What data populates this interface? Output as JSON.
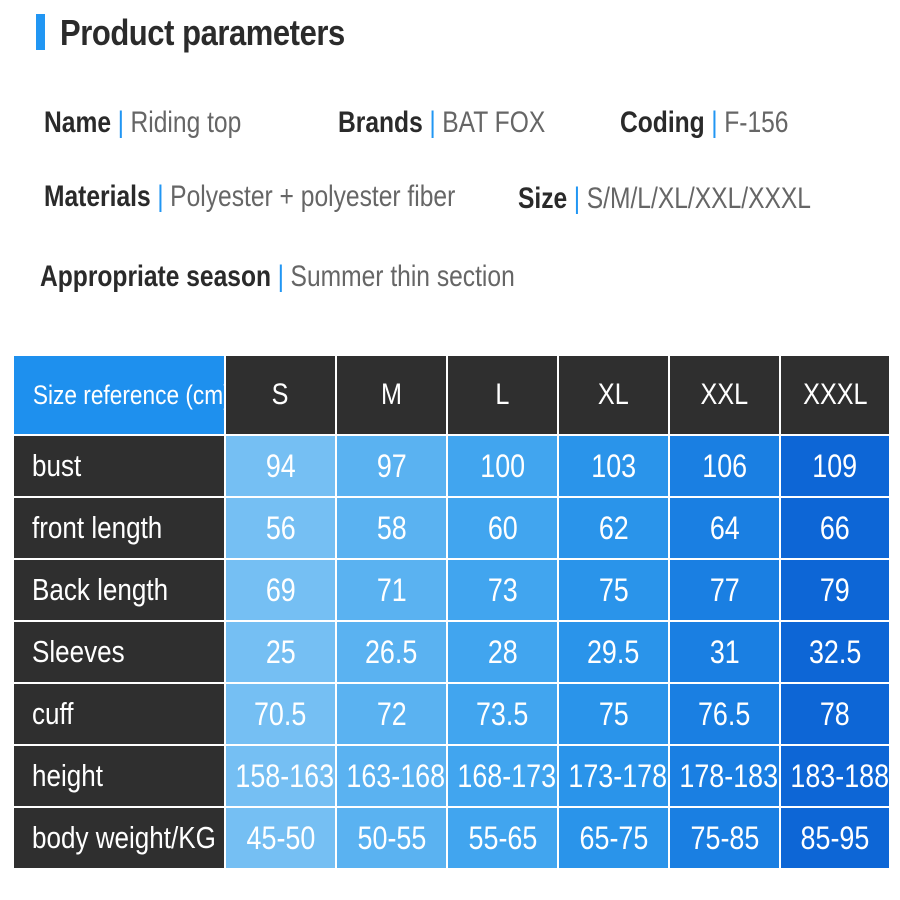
{
  "header": {
    "title": "Product parameters"
  },
  "params": {
    "name": {
      "key": "Name",
      "sep": "|",
      "value": "Riding top"
    },
    "brands": {
      "key": "Brands",
      "sep": "|",
      "value": "BAT FOX"
    },
    "coding": {
      "key": "Coding",
      "sep": "|",
      "value": "F-156"
    },
    "materials": {
      "key": "Materials",
      "sep": "|",
      "value": "Polyester + polyester fiber"
    },
    "size": {
      "key": "Size",
      "sep": "|",
      "value": "S/M/L/XL/XXL/XXXL"
    },
    "season": {
      "key": "Appropriate season",
      "sep": "|",
      "value": "Summer thin section"
    }
  },
  "table": {
    "corner": "Size reference (cm)",
    "columns": [
      "S",
      "M",
      "L",
      "XL",
      "XXL",
      "XXXL"
    ],
    "rows": [
      {
        "label": "bust",
        "values": [
          "94",
          "97",
          "100",
          "103",
          "106",
          "109"
        ]
      },
      {
        "label": "front length",
        "values": [
          "56",
          "58",
          "60",
          "62",
          "64",
          "66"
        ]
      },
      {
        "label": "Back length",
        "values": [
          "69",
          "71",
          "73",
          "75",
          "77",
          "79"
        ]
      },
      {
        "label": "Sleeves",
        "values": [
          "25",
          "26.5",
          "28",
          "29.5",
          "31",
          "32.5"
        ]
      },
      {
        "label": "cuff",
        "values": [
          "70.5",
          "72",
          "73.5",
          "75",
          "76.5",
          "78"
        ]
      },
      {
        "label": "height",
        "values": [
          "158-163",
          "163-168",
          "168-173",
          "173-178",
          "178-183",
          "183-188"
        ]
      },
      {
        "label": "body weight/KG",
        "values": [
          "45-50",
          "50-55",
          "55-65",
          "65-75",
          "75-85",
          "85-95"
        ]
      }
    ]
  },
  "colors": {
    "accent": "#2196f3",
    "header_dark": "#2f2f2f",
    "corner_blue": "#1e90ee",
    "column_gradient": [
      "#75bff3",
      "#5ab2f1",
      "#41a5ef",
      "#2a94ea",
      "#1a7fe2",
      "#0d66d6"
    ]
  }
}
